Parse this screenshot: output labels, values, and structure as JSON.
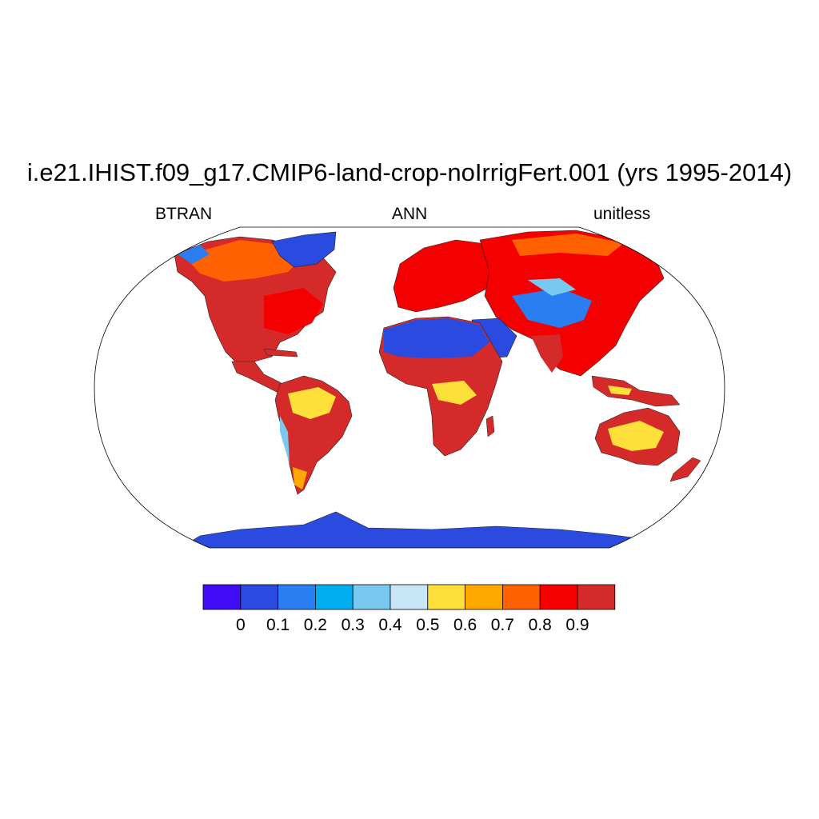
{
  "title": "i.e21.IHIST.f09_g17.CMIP6-land-crop-noIrrigFert.001 (yrs 1995-2014)",
  "subtitle_left": "BTRAN",
  "subtitle_center": "ANN",
  "subtitle_right": "unitless",
  "colorbar": {
    "colors": [
      "#3f0cf5",
      "#2a4ae0",
      "#2a7ef2",
      "#00aef0",
      "#78c8f0",
      "#c8e6f8",
      "#ffe03a",
      "#ffa800",
      "#ff6000",
      "#f50000",
      "#d52a2a"
    ],
    "labels": [
      "0",
      "0.1",
      "0.2",
      "0.3",
      "0.4",
      "0.5",
      "0.6",
      "0.7",
      "0.8",
      "0.9"
    ]
  },
  "map_colors": {
    "ocean": "#ffffff",
    "dry": "#2a4ae0",
    "mid": "#ffe03a",
    "wet": "#d52a2a",
    "high": "#f50000",
    "orange": "#ff6000",
    "light_blue": "#78c8f0",
    "blue": "#2a7ef2"
  }
}
